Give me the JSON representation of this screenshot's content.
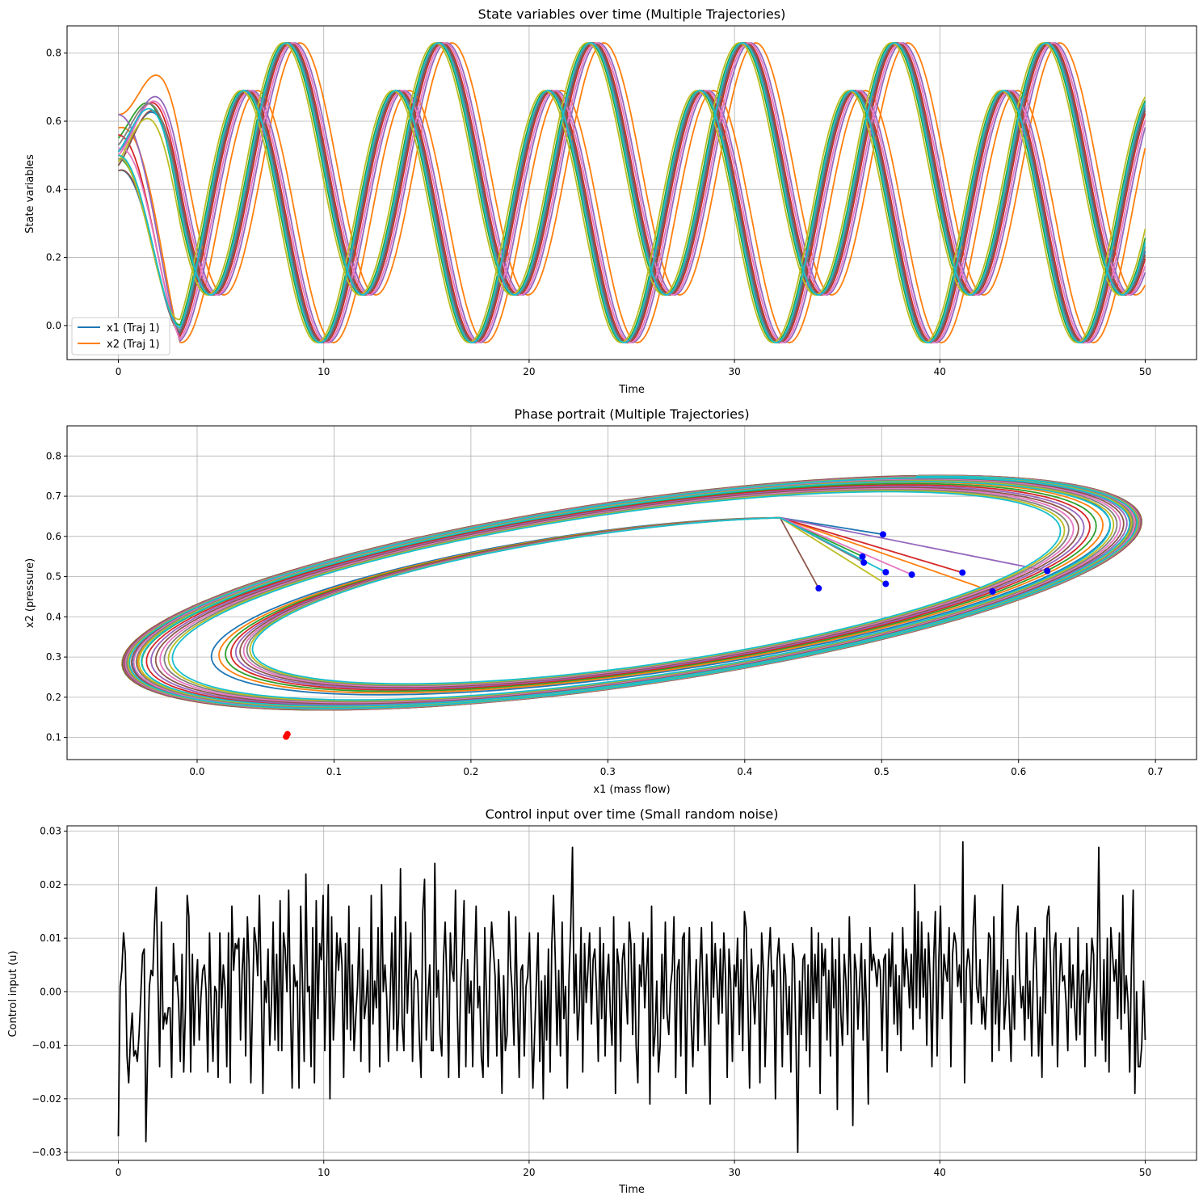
{
  "chart_data": [
    {
      "type": "line",
      "title": "State variables over time (Multiple Trajectories)",
      "xlabel": "Time",
      "ylabel": "State variables",
      "xlim": [
        -2.5,
        52.5
      ],
      "ylim": [
        -0.1,
        0.88
      ],
      "xticks": [
        0,
        10,
        20,
        30,
        40,
        50
      ],
      "yticks": [
        0.0,
        0.2,
        0.4,
        0.6,
        0.8
      ],
      "ytick_labels": [
        "0.0",
        "0.2",
        "0.4",
        "0.6",
        "0.8"
      ],
      "grid": true,
      "legend": {
        "placement": "lower-left",
        "entries": [
          {
            "label": "x1 (Traj 1)",
            "color": "#1f77b4"
          },
          {
            "label": "x2 (Traj 1)",
            "color": "#ff7f0e"
          }
        ]
      },
      "oscillation": {
        "period": 7.4,
        "x1_range": [
          -0.05,
          0.69
        ],
        "x2_range": [
          0.09,
          0.83
        ]
      },
      "series": [
        {
          "color": "#1f77b4",
          "x1_start": 0.455,
          "x2_start": 0.47,
          "phase": 0.0
        },
        {
          "color": "#ff7f0e",
          "x1_start": 0.58,
          "x2_start": 0.62,
          "phase": 0.55
        },
        {
          "color": "#2ca02c",
          "x1_start": 0.49,
          "x2_start": 0.55,
          "phase": -0.15
        },
        {
          "color": "#d62728",
          "x1_start": 0.56,
          "x2_start": 0.51,
          "phase": 0.1
        },
        {
          "color": "#9467bd",
          "x1_start": 0.62,
          "x2_start": 0.51,
          "phase": 0.3
        },
        {
          "color": "#8c564b",
          "x1_start": 0.455,
          "x2_start": 0.47,
          "phase": 0.05
        },
        {
          "color": "#e377c2",
          "x1_start": 0.52,
          "x2_start": 0.5,
          "phase": 0.2
        },
        {
          "color": "#7f7f7f",
          "x1_start": 0.49,
          "x2_start": 0.53,
          "phase": -0.05
        },
        {
          "color": "#bcbd22",
          "x1_start": 0.5,
          "x2_start": 0.48,
          "phase": -0.25
        },
        {
          "color": "#17becf",
          "x1_start": 0.5,
          "x2_start": 0.51,
          "phase": -0.1
        }
      ]
    },
    {
      "type": "line",
      "title": "Phase portrait (Multiple Trajectories)",
      "xlabel": "x1 (mass flow)",
      "ylabel": "x2 (pressure)",
      "xlim": [
        -0.095,
        0.73
      ],
      "ylim": [
        0.045,
        0.875
      ],
      "xticks": [
        0.0,
        0.1,
        0.2,
        0.3,
        0.4,
        0.5,
        0.6,
        0.7
      ],
      "xtick_labels": [
        "0.0",
        "0.1",
        "0.2",
        "0.3",
        "0.4",
        "0.5",
        "0.6",
        "0.7"
      ],
      "yticks": [
        0.1,
        0.2,
        0.3,
        0.4,
        0.5,
        0.6,
        0.7,
        0.8
      ],
      "ytick_labels": [
        "0.1",
        "0.2",
        "0.3",
        "0.4",
        "0.5",
        "0.6",
        "0.7",
        "0.8"
      ],
      "grid": true,
      "limit_cycle": {
        "x1_min": -0.055,
        "x1_max": 0.69,
        "x2_min": 0.085,
        "x2_max": 0.835
      },
      "start_points": [
        {
          "x1": 0.501,
          "x2": 0.605,
          "color": "#1f77b4"
        },
        {
          "x1": 0.581,
          "x2": 0.463,
          "color": "#ff7f0e"
        },
        {
          "x1": 0.486,
          "x2": 0.55,
          "color": "#2ca02c"
        },
        {
          "x1": 0.559,
          "x2": 0.51,
          "color": "#d62728"
        },
        {
          "x1": 0.621,
          "x2": 0.514,
          "color": "#9467bd"
        },
        {
          "x1": 0.454,
          "x2": 0.471,
          "color": "#8c564b"
        },
        {
          "x1": 0.522,
          "x2": 0.505,
          "color": "#e377c2"
        },
        {
          "x1": 0.487,
          "x2": 0.535,
          "color": "#7f7f7f"
        },
        {
          "x1": 0.503,
          "x2": 0.482,
          "color": "#bcbd22"
        },
        {
          "x1": 0.503,
          "x2": 0.511,
          "color": "#17becf"
        }
      ],
      "start_marker_color": "#0000ff",
      "end_points": [
        {
          "x1": 0.065,
          "x2": 0.102
        },
        {
          "x1": 0.066,
          "x2": 0.108
        }
      ],
      "end_marker_color": "#ff0000"
    },
    {
      "type": "line",
      "title": "Control input over time (Small random noise)",
      "xlabel": "Time",
      "ylabel": "Control input (u)",
      "xlim": [
        -2.5,
        52.5
      ],
      "ylim": [
        -0.0315,
        0.031
      ],
      "xticks": [
        0,
        10,
        20,
        30,
        40,
        50
      ],
      "yticks": [
        -0.03,
        -0.02,
        -0.01,
        0.0,
        0.01,
        0.02,
        0.03
      ],
      "ytick_labels": [
        "−0.03",
        "−0.02",
        "−0.01",
        "0.00",
        "0.01",
        "0.02",
        "0.03"
      ],
      "grid": true,
      "color": "#000000",
      "x_start": 0,
      "x_step": 0.1,
      "values": [
        -0.027,
        0.001,
        0.004,
        0.011,
        0.007,
        -0.012,
        -0.017,
        -0.009,
        -0.004,
        -0.012,
        -0.011,
        -0.013,
        -0.008,
        -0.001,
        0.007,
        0.008,
        -0.028,
        -0.012,
        0.001,
        0.004,
        0.003,
        0.013,
        0.0195,
        0.002,
        -0.014,
        0.013,
        -0.007,
        -0.004,
        -0.006,
        -0.003,
        -0.003,
        -0.016,
        0.009,
        0.002,
        0.003,
        -0.002,
        -0.013,
        0.007,
        -0.015,
        -0.003,
        0.018,
        0.014,
        -0.015,
        0.007,
        -0.01,
        0.001,
        0.006,
        -0.009,
        -0.001,
        0.004,
        0.005,
        0.0,
        -0.015,
        0.011,
        -0.004,
        -0.013,
        0.001,
        0.0,
        -0.016,
        0.011,
        -0.003,
        0.005,
        0.001,
        -0.014,
        0.011,
        -0.017,
        0.016,
        0.004,
        0.009,
        0.008,
        0.01,
        -0.009,
        0.004,
        0.01,
        -0.012,
        0.014,
        0.005,
        -0.017,
        -0.002,
        0.012,
        0.009,
        0.003,
        0.018,
        0.002,
        -0.019,
        0.002,
        -0.002,
        0.008,
        -0.01,
        -0.002,
        0.013,
        -0.009,
        0.007,
        -0.011,
        0.017,
        -0.011,
        0.011,
        0.008,
        0.0,
        0.019,
        -0.002,
        -0.018,
        0.005,
        0.001,
        0.002,
        -0.018,
        0.016,
        0.002,
        -0.013,
        0.022,
        0.0,
        0.001,
        -0.014,
        0.012,
        -0.017,
        0.017,
        -0.005,
        0.009,
        0.006,
        0.018,
        -0.011,
        0.003,
        0.02,
        -0.02,
        0.014,
        -0.009,
        -0.001,
        0.011,
        0.004,
        0.01,
        0.005,
        -0.016,
        0.009,
        -0.007,
        0.016,
        -0.009,
        0.005,
        -0.011,
        -0.005,
        0.001,
        0.012,
        -0.013,
        0.008,
        -0.005,
        -0.002,
        0.004,
        -0.015,
        0.018,
        -0.006,
        0.002,
        -0.003,
        0.012,
        -0.014,
        0.02,
        0.0,
        0.005,
        -0.001,
        -0.013,
        -0.001,
        0.011,
        -0.007,
        0.014,
        -0.011,
        -0.004,
        0.023,
        -0.006,
        -0.011,
        0.013,
        -0.004,
        0.005,
        0.011,
        -0.013,
        0.002,
        0.004,
        0.002,
        -0.009,
        -0.016,
        0.015,
        0.021,
        -0.009,
        -0.001,
        0.005,
        -0.011,
        -0.011,
        0.024,
        -0.001,
        0.004,
        -0.008,
        -0.012,
        0.006,
        0.013,
        0.001,
        -0.016,
        0.011,
        0.004,
        0.002,
        0.019,
        -0.003,
        -0.016,
        0.002,
        0.008,
        0.017,
        -0.014,
        0.006,
        -0.004,
        0.002,
        -0.014,
        0.004,
        0.016,
        -0.003,
        0.001,
        -0.012,
        -0.016,
        0.012,
        -0.001,
        -0.014,
        0.005,
        0.013,
        0.008,
        0.003,
        -0.012,
        0.006,
        -0.002,
        -0.019,
        0.003,
        -0.011,
        -0.008,
        0.015,
        0.005,
        0.0,
        -0.01,
        0.014,
        -0.002,
        -0.016,
        0.004,
        0.005,
        -0.012,
        0.001,
        0.003,
        0.011,
        -0.005,
        -0.018,
        -0.008,
        0.002,
        0.011,
        -0.013,
        0.002,
        -0.02,
        0.003,
        -0.009,
        0.008,
        -0.015,
        0.009,
        0.018,
        0.006,
        -0.01,
        0.004,
        -0.012,
        0.013,
        -0.005,
        0.001,
        -0.018,
        0.003,
        0.012,
        0.027,
        -0.004,
        0.007,
        -0.009,
        -0.003,
        0.012,
        -0.015,
        0.009,
        -0.002,
        0.004,
        0.011,
        -0.006,
        0.006,
        0.008,
        0.0,
        -0.013,
        0.012,
        -0.005,
        0.009,
        -0.012,
        0.002,
        0.007,
        -0.004,
        -0.01,
        0.014,
        -0.019,
        0.008,
        0.005,
        -0.013,
        0.006,
        0.009,
        0.001,
        -0.006,
        0.013,
        0.009,
        -0.008,
        0.009,
        -0.01,
        -0.017,
        0.005,
        0.001,
        0.011,
        -0.003,
        0.004,
        0.01,
        -0.021,
        0.016,
        -0.012,
        -0.008,
        0.002,
        -0.015,
        -0.01,
        0.007,
        -0.005,
        0.013,
        -0.004,
        -0.008,
        0.001,
        0.004,
        0.014,
        -0.016,
        0.004,
        0.006,
        -0.012,
        0.01,
        0.011,
        -0.019,
        0.002,
        0.012,
        -0.005,
        -0.014,
        -0.002,
        0.006,
        -0.011,
        0.004,
        0.012,
        -0.001,
        -0.01,
        0.007,
        -0.003,
        -0.021,
        0.013,
        -0.001,
        0.009,
        0.002,
        -0.006,
        0.008,
        -0.004,
        0.011,
        0.003,
        -0.016,
        0.008,
        0.002,
        -0.013,
        0.005,
        0.001,
        0.01,
        -0.008,
        0.006,
        -0.011,
        0.015,
        0.012,
        -0.002,
        -0.018,
        0.008,
        0.0,
        -0.006,
        0.002,
        0.005,
        -0.017,
        0.011,
        0.004,
        -0.014,
        -0.002,
        0.006,
        0.012,
        0.001,
        0.004,
        -0.02,
        0.006,
        0.01,
        0.003,
        -0.014,
        0.007,
        0.003,
        -0.008,
        0.001,
        -0.015,
        0.009,
        0.006,
        -0.01,
        -0.03,
        0.002,
        -0.008,
        0.006,
        0.007,
        -0.011,
        0.005,
        -0.014,
        0.012,
        -0.005,
        0.007,
        -0.002,
        0.011,
        -0.019,
        0.009,
        0.003,
        0.008,
        -0.009,
        0.004,
        -0.012,
        0.01,
        -0.003,
        0.006,
        -0.022,
        0.01,
        -0.004,
        -0.01,
        0.007,
        0.002,
        -0.008,
        0.014,
        0.001,
        -0.025,
        0.007,
        0.004,
        -0.007,
        0.002,
        0.009,
        -0.009,
        0.006,
        -0.003,
        -0.021,
        0.012,
        0.004,
        0.007,
        0.005,
        0.001,
        0.006,
        0.004,
        -0.011,
        0.006,
        0.007,
        -0.015,
        0.008,
        0.001,
        0.011,
        -0.006,
        0.005,
        -0.008,
        0.003,
        -0.011,
        0.012,
        0.001,
        0.008,
        0.004,
        -0.003,
        0.007,
        -0.007,
        0.02,
        -0.003,
        0.015,
        -0.005,
        0.013,
        -0.001,
        0.008,
        -0.01,
        0.011,
        0.002,
        -0.014,
        0.006,
        0.015,
        -0.012,
        0.006,
        0.016,
        -0.005,
        0.007,
        0.004,
        0.002,
        0.012,
        -0.014,
        0.007,
        0.011,
        0.009,
        0.001,
        0.005,
        -0.002,
        0.028,
        -0.017,
        0.004,
        0.008,
        0.005,
        -0.006,
        0.012,
        0.018,
        0.001,
        -0.002,
        0.006,
        -0.006,
        -0.001,
        -0.007,
        0.0,
        0.011,
        0.01,
        -0.013,
        0.014,
        -0.006,
        0.004,
        -0.011,
        0.003,
        0.02,
        -0.007,
        -0.002,
        0.006,
        -0.004,
        -0.013,
        0.003,
        -0.007,
        0.012,
        0.016,
        0.003,
        -0.003,
        0.001,
        -0.009,
        0.011,
        -0.005,
        0.002,
        -0.012,
        0.004,
        0.012,
        0.002,
        -0.012,
        -0.001,
        -0.016,
        0.01,
        -0.004,
        0.014,
        0.016,
        0.005,
        -0.01,
        0.008,
        0.011,
        -0.014,
        0.0,
        0.009,
        0.002,
        0.003,
        -0.002,
        -0.011,
        0.01,
        -0.003,
        0.005,
        -0.003,
        -0.009,
        0.012,
        -0.008,
        0.003,
        0.004,
        -0.014,
        0.009,
        -0.002,
        0.001,
        0.01,
        0.007,
        -0.012,
        0.003,
        0.027,
        0.0,
        -0.009,
        0.006,
        -0.013,
        0.01,
        -0.015,
        0.012,
        0.007,
        0.002,
        0.006,
        -0.005,
        0.011,
        -0.007,
        0.018,
        -0.004,
        0.003,
        -0.002,
        -0.015,
        0.005,
        0.019,
        -0.019,
        0.0,
        -0.014,
        -0.014,
        -0.01,
        0.002,
        -0.009
      ],
      "spikes": [
        {
          "x": 0.0,
          "y": -0.027
        },
        {
          "x": 0.3,
          "y": 0.011
        },
        {
          "x": 1.6,
          "y": -0.028
        },
        {
          "x": 2.2,
          "y": 0.0195
        },
        {
          "x": 10.7,
          "y": 0.022
        },
        {
          "x": 15.9,
          "y": 0.0225
        },
        {
          "x": 17.4,
          "y": 0.024
        },
        {
          "x": 21.0,
          "y": 0.027
        },
        {
          "x": 25.3,
          "y": -0.026
        },
        {
          "x": 30.5,
          "y": -0.03
        },
        {
          "x": 34.6,
          "y": -0.025
        },
        {
          "x": 37.0,
          "y": 0.0255
        },
        {
          "x": 41.0,
          "y": 0.028
        },
        {
          "x": 47.8,
          "y": 0.0275
        },
        {
          "x": 49.0,
          "y": -0.0195
        },
        {
          "x": 50.0,
          "y": -0.0095
        }
      ]
    }
  ]
}
